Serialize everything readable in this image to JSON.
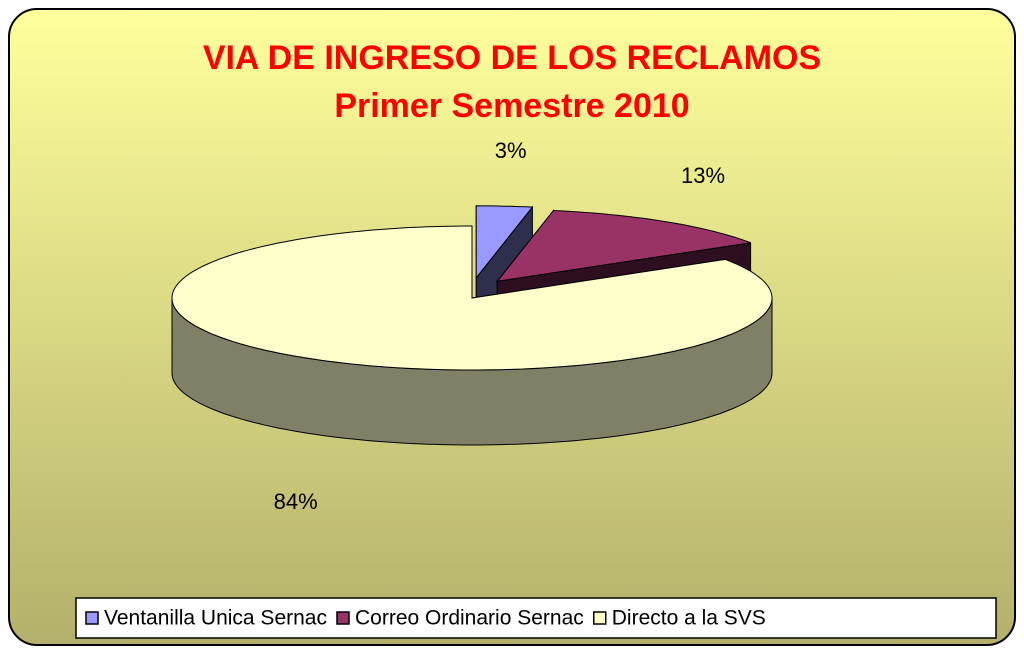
{
  "chart_data": {
    "type": "pie3d",
    "title": "VIA DE INGRESO DE LOS RECLAMOS",
    "subtitle": "Primer Semestre  2010",
    "categories": [
      "Ventanilla Unica Sernac",
      "Correo Ordinario Sernac",
      "Directo a la SVS"
    ],
    "values": [
      3,
      13,
      84
    ],
    "value_labels": [
      "3%",
      "13%",
      "84%"
    ],
    "colors": [
      "#9999ff",
      "#993366",
      "#ffffcc"
    ],
    "legend": "bottom"
  }
}
